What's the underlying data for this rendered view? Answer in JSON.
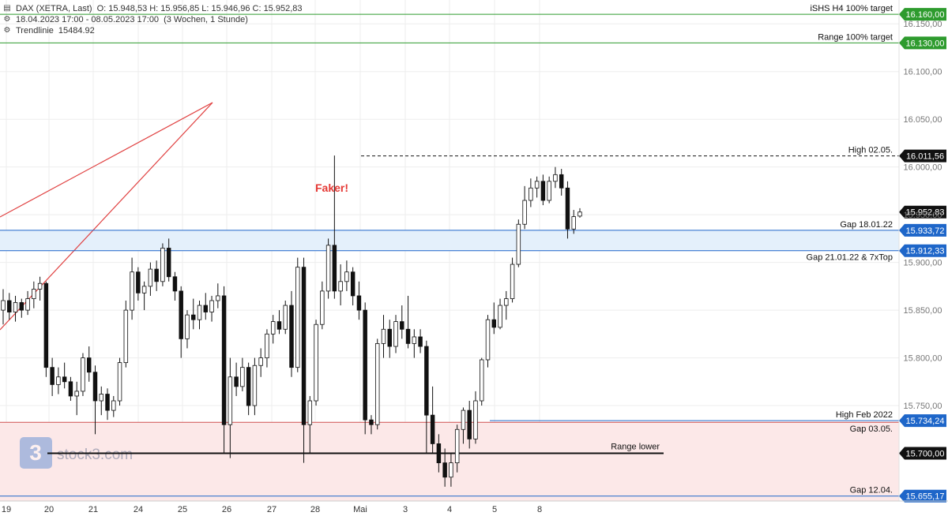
{
  "header": {
    "instrument": "DAX (XETRA, Last)",
    "ohlc": "O: 15.948,53  H: 15.956,85  L: 15.946,96  C: 15.952,83",
    "range": "18.04.2023 17:00 - 08.05.2023 17:00",
    "period": "(3 Wochen, 1 Stunde)",
    "trendline_label": "Trendlinie",
    "trendline_value": "15484.92",
    "chart_icon": "candlestick-icon",
    "settings_icon": "gear-icon"
  },
  "watermark": {
    "text": "stock3.com",
    "logo_icon": "stock3-logo-icon"
  },
  "chart_data": {
    "type": "candlestick",
    "ylim": [
      15650,
      16175
    ],
    "y_ticks": [
      15750,
      15800,
      15850,
      15900,
      15950,
      16000,
      16050,
      16100,
      16150
    ],
    "y_tick_labels": [
      "15.750,00",
      "15.800,00",
      "15.850,00",
      "15.900,00",
      "15.950,00",
      "16.000,00",
      "16.050,00",
      "16.100,00",
      "16.150,00"
    ],
    "x_labels": [
      "19",
      "20",
      "21",
      "24",
      "25",
      "26",
      "27",
      "28",
      "Mai",
      "3",
      "4",
      "5",
      "8"
    ],
    "annotation": {
      "text": "Faker!",
      "color": "#e53935"
    },
    "levels": [
      {
        "label": "iSHS H4 100% target",
        "value": 16160.0,
        "price": "16.160,00",
        "color": "#2e9b2e",
        "style": "solid"
      },
      {
        "label": "Range 100% target",
        "value": 16130.0,
        "price": "16.130,00",
        "color": "#2e9b2e",
        "style": "solid"
      },
      {
        "label": "High 02.05.",
        "value": 16011.56,
        "price": "16.011,56",
        "color": "#111111",
        "style": "dashed"
      },
      {
        "label": "",
        "value": 15952.83,
        "price": "15.952,83",
        "color": "#111111",
        "style": "none"
      },
      {
        "label": "Gap 18.01.22",
        "value": 15933.72,
        "price": "15.933,72",
        "color": "#1e66c9",
        "style": "solid"
      },
      {
        "label": "Gap 21.01.22 & 7xTop",
        "value": 15912.33,
        "price": "15.912,33",
        "color": "#1e66c9",
        "style": "solid"
      },
      {
        "label": "High Feb 2022",
        "value": 15734.24,
        "price": "15.734,24",
        "color": "#1e66c9",
        "style": "solid"
      },
      {
        "label": "Gap 03.05.",
        "value": 15732.5,
        "price": "",
        "color": "#d05050",
        "style": "solid"
      },
      {
        "label": "Range lower",
        "value": 15700.0,
        "price": "15.700,00",
        "color": "#111111",
        "style": "solid"
      },
      {
        "label": "Gap 12.04.",
        "value": 15655.17,
        "price": "15.655,17",
        "color": "#1e66c9",
        "style": "solid"
      }
    ],
    "zones": [
      {
        "from": 15912.33,
        "to": 15933.72,
        "color": "#e4f0fb"
      },
      {
        "from": 15650,
        "to": 15732.5,
        "color": "#fce8e8"
      }
    ],
    "series": [
      {
        "o": 15850,
        "h": 15872,
        "l": 15835,
        "c": 15860
      },
      {
        "o": 15860,
        "h": 15868,
        "l": 15840,
        "c": 15848
      },
      {
        "o": 15848,
        "h": 15865,
        "l": 15838,
        "c": 15858
      },
      {
        "o": 15858,
        "h": 15862,
        "l": 15842,
        "c": 15850
      },
      {
        "o": 15850,
        "h": 15870,
        "l": 15845,
        "c": 15862
      },
      {
        "o": 15862,
        "h": 15880,
        "l": 15852,
        "c": 15872
      },
      {
        "o": 15872,
        "h": 15885,
        "l": 15860,
        "c": 15878
      },
      {
        "o": 15878,
        "h": 15880,
        "l": 15780,
        "c": 15790
      },
      {
        "o": 15790,
        "h": 15800,
        "l": 15760,
        "c": 15772
      },
      {
        "o": 15772,
        "h": 15790,
        "l": 15762,
        "c": 15780
      },
      {
        "o": 15780,
        "h": 15795,
        "l": 15768,
        "c": 15775
      },
      {
        "o": 15775,
        "h": 15780,
        "l": 15755,
        "c": 15760
      },
      {
        "o": 15760,
        "h": 15775,
        "l": 15740,
        "c": 15765
      },
      {
        "o": 15765,
        "h": 15805,
        "l": 15760,
        "c": 15800
      },
      {
        "o": 15800,
        "h": 15812,
        "l": 15775,
        "c": 15785
      },
      {
        "o": 15785,
        "h": 15792,
        "l": 15720,
        "c": 15755
      },
      {
        "o": 15755,
        "h": 15770,
        "l": 15740,
        "c": 15762
      },
      {
        "o": 15762,
        "h": 15768,
        "l": 15735,
        "c": 15745
      },
      {
        "o": 15745,
        "h": 15760,
        "l": 15738,
        "c": 15755
      },
      {
        "o": 15755,
        "h": 15800,
        "l": 15750,
        "c": 15795
      },
      {
        "o": 15795,
        "h": 15860,
        "l": 15790,
        "c": 15850
      },
      {
        "o": 15850,
        "h": 15905,
        "l": 15840,
        "c": 15890
      },
      {
        "o": 15890,
        "h": 15895,
        "l": 15860,
        "c": 15868
      },
      {
        "o": 15868,
        "h": 15880,
        "l": 15850,
        "c": 15875
      },
      {
        "o": 15875,
        "h": 15900,
        "l": 15865,
        "c": 15893
      },
      {
        "o": 15893,
        "h": 15902,
        "l": 15870,
        "c": 15880
      },
      {
        "o": 15880,
        "h": 15920,
        "l": 15875,
        "c": 15915
      },
      {
        "o": 15915,
        "h": 15925,
        "l": 15880,
        "c": 15885
      },
      {
        "o": 15885,
        "h": 15890,
        "l": 15860,
        "c": 15870
      },
      {
        "o": 15870,
        "h": 15875,
        "l": 15800,
        "c": 15820
      },
      {
        "o": 15820,
        "h": 15850,
        "l": 15810,
        "c": 15845
      },
      {
        "o": 15845,
        "h": 15862,
        "l": 15830,
        "c": 15840
      },
      {
        "o": 15840,
        "h": 15860,
        "l": 15830,
        "c": 15855
      },
      {
        "o": 15855,
        "h": 15868,
        "l": 15840,
        "c": 15848
      },
      {
        "o": 15848,
        "h": 15865,
        "l": 15838,
        "c": 15860
      },
      {
        "o": 15860,
        "h": 15878,
        "l": 15852,
        "c": 15865
      },
      {
        "o": 15865,
        "h": 15875,
        "l": 15700,
        "c": 15730
      },
      {
        "o": 15730,
        "h": 15800,
        "l": 15695,
        "c": 15780
      },
      {
        "o": 15780,
        "h": 15795,
        "l": 15760,
        "c": 15770
      },
      {
        "o": 15770,
        "h": 15800,
        "l": 15765,
        "c": 15790
      },
      {
        "o": 15790,
        "h": 15795,
        "l": 15740,
        "c": 15750
      },
      {
        "o": 15750,
        "h": 15800,
        "l": 15740,
        "c": 15792
      },
      {
        "o": 15792,
        "h": 15810,
        "l": 15780,
        "c": 15800
      },
      {
        "o": 15800,
        "h": 15830,
        "l": 15790,
        "c": 15825
      },
      {
        "o": 15825,
        "h": 15845,
        "l": 15815,
        "c": 15838
      },
      {
        "o": 15838,
        "h": 15850,
        "l": 15825,
        "c": 15830
      },
      {
        "o": 15830,
        "h": 15860,
        "l": 15825,
        "c": 15855
      },
      {
        "o": 15855,
        "h": 15870,
        "l": 15780,
        "c": 15790
      },
      {
        "o": 15790,
        "h": 15905,
        "l": 15785,
        "c": 15895
      },
      {
        "o": 15895,
        "h": 15905,
        "l": 15690,
        "c": 15730
      },
      {
        "o": 15730,
        "h": 15760,
        "l": 15700,
        "c": 15755
      },
      {
        "o": 15755,
        "h": 15840,
        "l": 15750,
        "c": 15835
      },
      {
        "o": 15835,
        "h": 15880,
        "l": 15830,
        "c": 15870
      },
      {
        "o": 15870,
        "h": 15925,
        "l": 15862,
        "c": 15918
      },
      {
        "o": 15918,
        "h": 16012,
        "l": 15862,
        "c": 15870
      },
      {
        "o": 15870,
        "h": 15898,
        "l": 15855,
        "c": 15880
      },
      {
        "o": 15880,
        "h": 15902,
        "l": 15870,
        "c": 15890
      },
      {
        "o": 15890,
        "h": 15895,
        "l": 15855,
        "c": 15865
      },
      {
        "o": 15865,
        "h": 15880,
        "l": 15840,
        "c": 15850
      },
      {
        "o": 15850,
        "h": 15858,
        "l": 15720,
        "c": 15735
      },
      {
        "o": 15735,
        "h": 15740,
        "l": 15720,
        "c": 15730
      },
      {
        "o": 15730,
        "h": 15820,
        "l": 15725,
        "c": 15815
      },
      {
        "o": 15815,
        "h": 15845,
        "l": 15800,
        "c": 15830
      },
      {
        "o": 15830,
        "h": 15840,
        "l": 15800,
        "c": 15812
      },
      {
        "o": 15812,
        "h": 15845,
        "l": 15805,
        "c": 15838
      },
      {
        "o": 15838,
        "h": 15855,
        "l": 15820,
        "c": 15830
      },
      {
        "o": 15830,
        "h": 15865,
        "l": 15810,
        "c": 15815
      },
      {
        "o": 15815,
        "h": 15830,
        "l": 15800,
        "c": 15822
      },
      {
        "o": 15822,
        "h": 15830,
        "l": 15805,
        "c": 15812
      },
      {
        "o": 15812,
        "h": 15818,
        "l": 15700,
        "c": 15740
      },
      {
        "o": 15740,
        "h": 15770,
        "l": 15700,
        "c": 15710
      },
      {
        "o": 15710,
        "h": 15720,
        "l": 15680,
        "c": 15690
      },
      {
        "o": 15690,
        "h": 15705,
        "l": 15665,
        "c": 15675
      },
      {
        "o": 15675,
        "h": 15700,
        "l": 15665,
        "c": 15690
      },
      {
        "o": 15690,
        "h": 15730,
        "l": 15680,
        "c": 15725
      },
      {
        "o": 15725,
        "h": 15748,
        "l": 15710,
        "c": 15745
      },
      {
        "o": 15745,
        "h": 15755,
        "l": 15705,
        "c": 15715
      },
      {
        "o": 15715,
        "h": 15765,
        "l": 15710,
        "c": 15755
      },
      {
        "o": 15755,
        "h": 15800,
        "l": 15750,
        "c": 15798
      },
      {
        "o": 15798,
        "h": 15845,
        "l": 15790,
        "c": 15840
      },
      {
        "o": 15840,
        "h": 15858,
        "l": 15825,
        "c": 15832
      },
      {
        "o": 15832,
        "h": 15862,
        "l": 15830,
        "c": 15855
      },
      {
        "o": 15855,
        "h": 15870,
        "l": 15840,
        "c": 15862
      },
      {
        "o": 15862,
        "h": 15905,
        "l": 15858,
        "c": 15898
      },
      {
        "o": 15898,
        "h": 15945,
        "l": 15895,
        "c": 15940
      },
      {
        "o": 15940,
        "h": 15980,
        "l": 15935,
        "c": 15965
      },
      {
        "o": 15965,
        "h": 15988,
        "l": 15958,
        "c": 15978
      },
      {
        "o": 15978,
        "h": 15990,
        "l": 15968,
        "c": 15985
      },
      {
        "o": 15985,
        "h": 15992,
        "l": 15960,
        "c": 15965
      },
      {
        "o": 15965,
        "h": 15990,
        "l": 15962,
        "c": 15985
      },
      {
        "o": 15985,
        "h": 16000,
        "l": 15978,
        "c": 15992
      },
      {
        "o": 15992,
        "h": 15998,
        "l": 15970,
        "c": 15978
      },
      {
        "o": 15978,
        "h": 15985,
        "l": 15925,
        "c": 15935
      },
      {
        "o": 15935,
        "h": 15955,
        "l": 15930,
        "c": 15948
      },
      {
        "o": 15948.53,
        "h": 15956.85,
        "l": 15946.96,
        "c": 15952.83
      }
    ]
  }
}
